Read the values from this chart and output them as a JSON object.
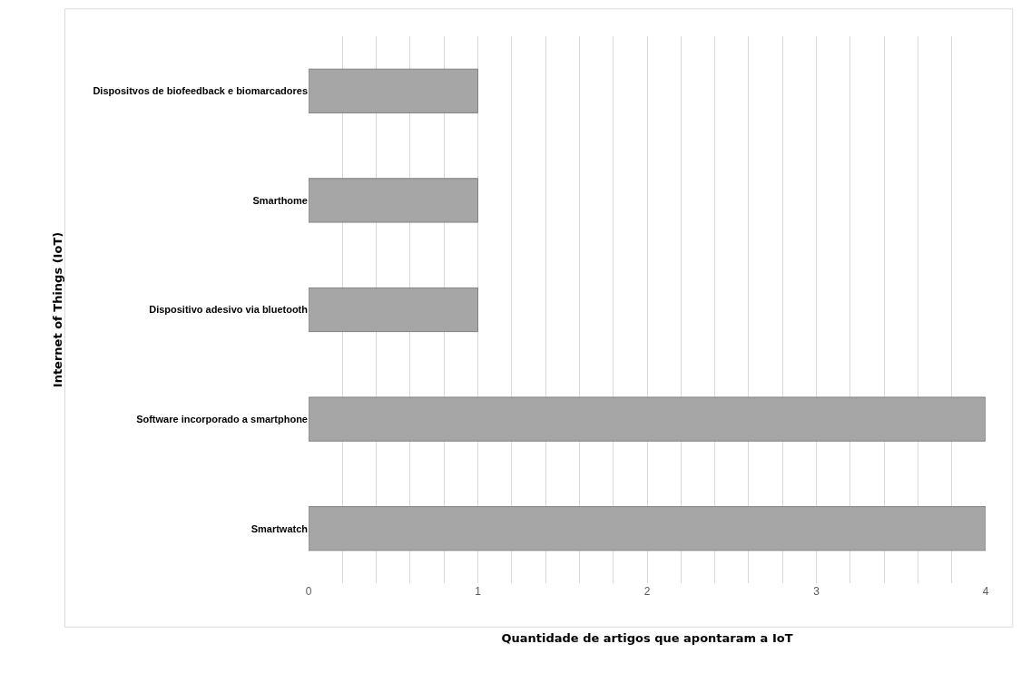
{
  "chart_data": {
    "type": "bar",
    "orientation": "horizontal",
    "xlabel": "Quantidade de artigos que apontaram a IoT",
    "ylabel": "Internet of Things (IoT)",
    "categories": [
      "Dispositvos de biofeedback e biomarcadores",
      "Smarthome",
      "Dispositivo adesivo via bluetooth",
      "Software incorporado a smartphone",
      "Smartwatch"
    ],
    "values": [
      1,
      1,
      1,
      4,
      4
    ],
    "color": "#a6a6a6",
    "xlim": [
      0,
      4
    ],
    "xticks": [
      0,
      {
        "value": 0.2,
        "label": null
      },
      {
        "value": 0.4,
        "label": null
      },
      {
        "value": 0.6,
        "label": null
      },
      {
        "value": 0.8,
        "label": null
      },
      1,
      {
        "value": 1.2,
        "label": null
      },
      {
        "value": 1.4,
        "label": null
      },
      {
        "value": 1.6,
        "label": null
      },
      {
        "value": 1.8,
        "label": null
      },
      2,
      {
        "value": 2.2,
        "label": null
      },
      {
        "value": 2.4,
        "label": null
      },
      {
        "value": 2.6,
        "label": null
      },
      {
        "value": 2.8,
        "label": null
      },
      3,
      {
        "value": 3.2,
        "label": null
      },
      {
        "value": 3.4,
        "label": null
      },
      {
        "value": 3.6,
        "label": null
      },
      {
        "value": 3.8,
        "label": null
      },
      4
    ],
    "grid": "x"
  }
}
